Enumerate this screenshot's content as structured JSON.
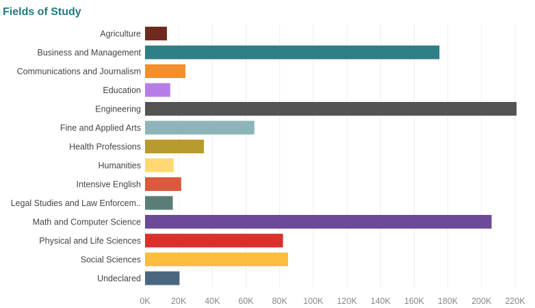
{
  "chart_data": {
    "type": "bar",
    "orientation": "horizontal",
    "title": "Fields of Study",
    "xlabel": "",
    "ylabel": "",
    "xlim": [
      0,
      220000
    ],
    "grid": true,
    "categories": [
      "Agriculture",
      "Business and Management",
      "Communications and Journalism",
      "Education",
      "Engineering",
      "Fine and Applied Arts",
      "Health Professions",
      "Humanities",
      "Intensive English",
      "Legal Studies and Law Enforcem..",
      "Math and Computer Science",
      "Physical and Life Sciences",
      "Social Sciences",
      "Undeclared"
    ],
    "values": [
      13000,
      175000,
      24000,
      15000,
      221000,
      65000,
      35000,
      17000,
      21500,
      16500,
      206000,
      82000,
      85000,
      20500
    ],
    "colors": [
      "#6e2b1e",
      "#2e7f86",
      "#f2902e",
      "#b77fe6",
      "#545454",
      "#8db5b9",
      "#b89a2e",
      "#fed871",
      "#d95b3b",
      "#5b7d78",
      "#6d4a99",
      "#d9302b",
      "#fbbe3e",
      "#4a6782"
    ],
    "tick_values": [
      0,
      20000,
      40000,
      60000,
      80000,
      100000,
      120000,
      140000,
      160000,
      180000,
      200000,
      220000
    ],
    "tick_labels": [
      "0K",
      "20K",
      "40K",
      "60K",
      "80K",
      "100K",
      "120K",
      "140K",
      "160K",
      "180K",
      "200K",
      "220K"
    ]
  }
}
